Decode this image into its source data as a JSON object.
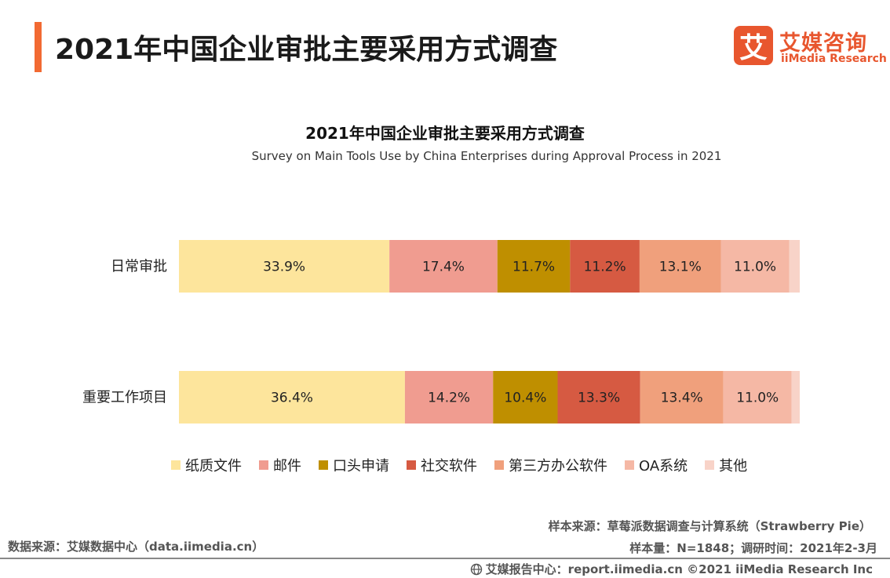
{
  "header": {
    "title": "2021年中国企业审批主要采用方式调查",
    "logo_mark": "艾",
    "logo_cn": "艾媒咨询",
    "logo_en": "iiMedia Research"
  },
  "colors": {
    "accent": "#f26a32",
    "brand": "#e8562e"
  },
  "chart_data": {
    "type": "bar",
    "orientation": "horizontal",
    "stacked": true,
    "percent_stacked": true,
    "title": "2021年中国企业审批主要采用方式调查",
    "subtitle": "Survey on Main Tools Use by China Enterprises during Approval Process in 2021",
    "categories": [
      "日常审批",
      "重要工作项目"
    ],
    "series": [
      {
        "name": "纸质文件",
        "color": "#fde59c",
        "values": [
          33.9,
          36.4
        ],
        "labels": [
          "33.9%",
          "36.4%"
        ]
      },
      {
        "name": "邮件",
        "color": "#f09c90",
        "values": [
          17.4,
          14.2
        ],
        "labels": [
          "17.4%",
          "14.2%"
        ]
      },
      {
        "name": "口头申请",
        "color": "#bf8f00",
        "values": [
          11.7,
          10.4
        ],
        "labels": [
          "11.7%",
          "10.4%"
        ]
      },
      {
        "name": "社交软件",
        "color": "#d65a42",
        "values": [
          11.2,
          13.3
        ],
        "labels": [
          "11.2%",
          "13.3%"
        ]
      },
      {
        "name": "第三方办公软件",
        "color": "#f0a07c",
        "values": [
          13.1,
          13.4
        ],
        "labels": [
          "13.1%",
          "13.4%"
        ]
      },
      {
        "name": "OA系统",
        "color": "#f5b8a5",
        "values": [
          11.0,
          11.0
        ],
        "labels": [
          "11.0%",
          "11.0%"
        ]
      },
      {
        "name": "其他",
        "color": "#f8d3c8",
        "values": [
          1.7,
          1.3
        ],
        "labels": [
          "",
          ""
        ]
      }
    ],
    "xlim": [
      0,
      100
    ],
    "grid": false,
    "legend_position": "bottom"
  },
  "notes": {
    "sample_source": "样本来源：草莓派数据调查与计算系统（Strawberry Pie）",
    "sample_size": "样本量：N=1848；调研时间：2021年2-3月",
    "data_source": "数据来源：艾媒数据中心（data.iimedia.cn）",
    "footer": "艾媒报告中心：report.iimedia.cn ©2021  iiMedia Research  Inc"
  }
}
